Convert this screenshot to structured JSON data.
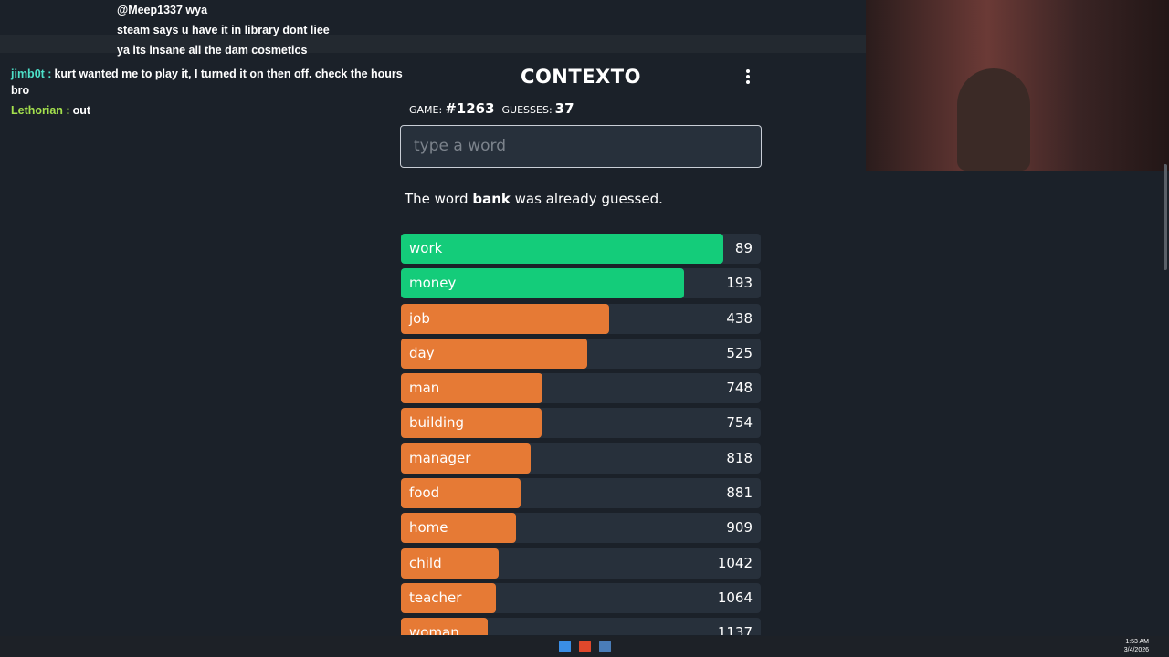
{
  "chat": {
    "messages": [
      {
        "text": "@Meep1337 wya"
      },
      {
        "text": "steam says u have it in library dont liee"
      },
      {
        "text": "ya its insane all the dam cosmetics"
      },
      {
        "user": "jimb0t",
        "text": "kurt wanted me to play it, I turned it on then off. check the hours bro"
      },
      {
        "user": "Lethorian",
        "text": "out"
      }
    ]
  },
  "game": {
    "title": "CONTEXTO",
    "game_label": "GAME:",
    "game_number": "#1263",
    "guesses_label": "GUESSES:",
    "guesses": 37,
    "input_placeholder": "type a word",
    "message": {
      "before": "The word",
      "word": "bank",
      "after": "was already guessed."
    },
    "rows": [
      {
        "word": "work",
        "rank": 89
      },
      {
        "word": "money",
        "rank": 193
      },
      {
        "word": "job",
        "rank": 438
      },
      {
        "word": "day",
        "rank": 525
      },
      {
        "word": "man",
        "rank": 748
      },
      {
        "word": "building",
        "rank": 754
      },
      {
        "word": "manager",
        "rank": 818
      },
      {
        "word": "food",
        "rank": 881
      },
      {
        "word": "home",
        "rank": 909
      },
      {
        "word": "child",
        "rank": 1042
      },
      {
        "word": "teacher",
        "rank": 1064
      },
      {
        "word": "woman",
        "rank": 1137
      }
    ]
  },
  "taskbar": {
    "time": "1:53 AM",
    "date": "3/4/2026"
  }
}
